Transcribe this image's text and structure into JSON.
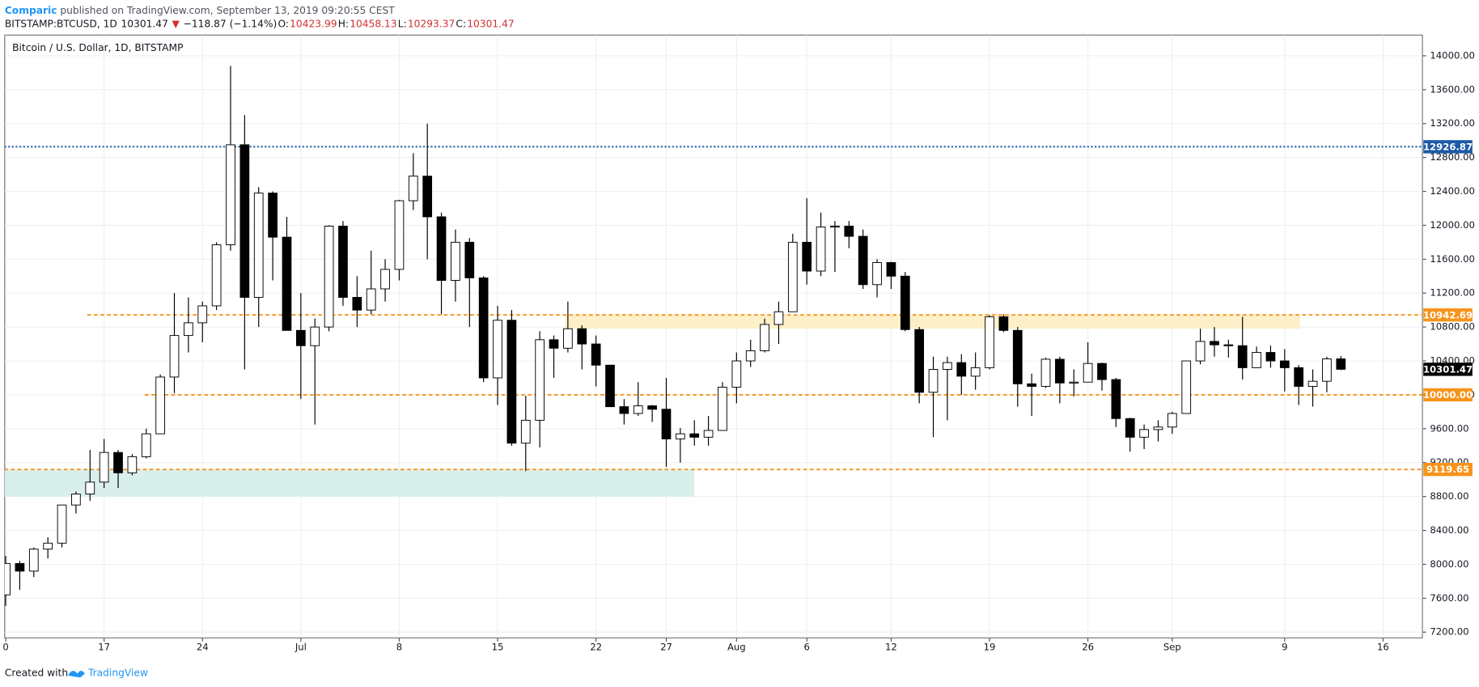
{
  "header": {
    "author": "Comparic",
    "published": "published on TradingView.com, September 13, 2019 09:20:55 CEST",
    "quote": [
      {
        "text": "BITSTAMP:BTCUSD, 1D",
        "color": "#131722"
      },
      {
        "text": "10301.47",
        "color": "#131722"
      },
      {
        "text": "▼",
        "color": "#d32f2f"
      },
      {
        "text": "−118.87 (−1.14%)",
        "color": "#131722"
      },
      {
        "text": "O:",
        "color": "#131722"
      },
      {
        "text": "10423.99",
        "color": "#d32f2f"
      },
      {
        "text": "H:",
        "color": "#131722"
      },
      {
        "text": "10458.13",
        "color": "#d32f2f"
      },
      {
        "text": "L:",
        "color": "#131722"
      },
      {
        "text": "10293.37",
        "color": "#d32f2f"
      },
      {
        "text": "C:",
        "color": "#131722"
      },
      {
        "text": "10301.47",
        "color": "#d32f2f"
      }
    ]
  },
  "footer": {
    "text": "Created with",
    "brand": "TradingView"
  },
  "chart_data": {
    "type": "candlestick",
    "title": "Bitcoin / U.S. Dollar, 1D, BITSTAMP",
    "up_color": "#ffffff",
    "down_color": "#000000",
    "outline_color": "#000000",
    "grid": true,
    "open": [
      7640,
      8010,
      7920,
      8180,
      8250,
      8700,
      8830,
      8970,
      9320,
      9080,
      9270,
      9540,
      10210,
      10700,
      10850,
      11050,
      11770,
      12950,
      11150,
      12380,
      11860,
      10760,
      10580,
      10800,
      11990,
      11150,
      11000,
      11250,
      11480,
      12290,
      12580,
      12100,
      11350,
      11800,
      11380,
      10200,
      10880,
      9430,
      9700,
      10650,
      10550,
      10780,
      10600,
      10350,
      9860,
      9780,
      9870,
      9830,
      9480,
      9540,
      9500,
      9580,
      10090,
      10400,
      10520,
      10830,
      10980,
      11800,
      11460,
      11980,
      11990,
      11870,
      11300,
      11560,
      11400,
      10770,
      10030,
      10300,
      10380,
      10220,
      10320,
      10920,
      10760,
      10130,
      10100,
      10420,
      10140,
      10150,
      10370,
      10180,
      9720,
      9500,
      9590,
      9620,
      9780,
      10400,
      10630,
      10590,
      10580,
      10320,
      10500,
      10400,
      10320,
      10100,
      10160,
      10423.99
    ],
    "high": [
      8100,
      8040,
      8200,
      8320,
      8700,
      8860,
      9350,
      9480,
      9350,
      9300,
      9600,
      10240,
      11200,
      11150,
      11100,
      11800,
      13880,
      13300,
      12450,
      12400,
      12100,
      11200,
      10900,
      12000,
      12050,
      11400,
      11700,
      11600,
      12300,
      12850,
      13200,
      12150,
      11950,
      11850,
      11400,
      11050,
      11000,
      9990,
      10750,
      10700,
      11100,
      10820,
      10700,
      10350,
      9950,
      10150,
      9880,
      10200,
      9610,
      9700,
      9750,
      10150,
      10500,
      10650,
      10900,
      11100,
      11900,
      12320,
      12150,
      12050,
      12050,
      11950,
      11600,
      11570,
      11450,
      10800,
      10450,
      10450,
      10480,
      10500,
      10940,
      10950,
      10800,
      10250,
      10440,
      10450,
      10300,
      10620,
      10380,
      10200,
      9730,
      9650,
      9700,
      9800,
      10400,
      10780,
      10800,
      10650,
      10920,
      10570,
      10580,
      10540,
      10350,
      10300,
      10450,
      10458.13
    ],
    "low": [
      7510,
      7700,
      7850,
      8070,
      8200,
      8600,
      8750,
      8900,
      8900,
      9050,
      9250,
      9540,
      10020,
      10500,
      10620,
      11000,
      11700,
      10300,
      10800,
      11350,
      10800,
      9950,
      9650,
      10750,
      11050,
      10800,
      10950,
      11100,
      11350,
      12180,
      11600,
      10950,
      11100,
      10800,
      10150,
      9880,
      9400,
      9100,
      9380,
      10200,
      10500,
      10300,
      10100,
      9900,
      9650,
      9750,
      9680,
      9150,
      9200,
      9400,
      9400,
      9580,
      9900,
      10330,
      10500,
      10600,
      10980,
      11300,
      11400,
      11450,
      11730,
      11250,
      11150,
      11250,
      10750,
      9900,
      9500,
      9700,
      10000,
      10060,
      10300,
      10740,
      9860,
      9750,
      10080,
      9900,
      9980,
      10150,
      10050,
      9620,
      9330,
      9360,
      9450,
      9540,
      9780,
      10360,
      10450,
      10440,
      10180,
      10320,
      10320,
      10040,
      9880,
      9860,
      10030,
      10293.37
    ],
    "close": [
      8010,
      7920,
      8180,
      8250,
      8700,
      8830,
      8970,
      9320,
      9080,
      9270,
      9540,
      10210,
      10700,
      10850,
      11050,
      11770,
      12950,
      11150,
      12380,
      11860,
      10760,
      10580,
      10800,
      11990,
      11150,
      11000,
      11250,
      11480,
      12290,
      12580,
      12100,
      11350,
      11800,
      11380,
      10200,
      10880,
      9430,
      9700,
      10650,
      10550,
      10780,
      10600,
      10350,
      9860,
      9780,
      9870,
      9830,
      9480,
      9540,
      9500,
      9580,
      10090,
      10400,
      10520,
      10830,
      10980,
      11800,
      11460,
      11980,
      11990,
      11870,
      11300,
      11560,
      11400,
      10770,
      10030,
      10300,
      10380,
      10220,
      10320,
      10920,
      10760,
      10130,
      10100,
      10420,
      10140,
      10150,
      10370,
      10180,
      9720,
      9500,
      9590,
      9620,
      9780,
      10400,
      10630,
      10590,
      10580,
      10320,
      10500,
      10400,
      10320,
      10100,
      10160,
      10423.99,
      10301.47
    ],
    "xlim": [
      -0.07,
      100.8
    ],
    "xticks": [
      {
        "value": 0,
        "label": "0"
      },
      {
        "value": 7,
        "label": "17"
      },
      {
        "value": 14,
        "label": "24"
      },
      {
        "value": 21,
        "label": "Jul"
      },
      {
        "value": 28,
        "label": "8"
      },
      {
        "value": 35,
        "label": "15"
      },
      {
        "value": 42,
        "label": "22"
      },
      {
        "value": 47,
        "label": "27"
      },
      {
        "value": 52,
        "label": "Aug"
      },
      {
        "value": 57,
        "label": "6"
      },
      {
        "value": 63,
        "label": "12"
      },
      {
        "value": 70,
        "label": "19"
      },
      {
        "value": 77,
        "label": "26"
      },
      {
        "value": 83,
        "label": "Sep"
      },
      {
        "value": 91,
        "label": "9"
      },
      {
        "value": 98,
        "label": "16"
      }
    ],
    "ylim": [
      7200,
      14000
    ],
    "yticks": [
      {
        "value": 7200,
        "label": "7200.00"
      },
      {
        "value": 7600,
        "label": "7600.00"
      },
      {
        "value": 8000,
        "label": "8000.00"
      },
      {
        "value": 8400,
        "label": "8400.00"
      },
      {
        "value": 8800,
        "label": "8800.00"
      },
      {
        "value": 9200,
        "label": "9200.00"
      },
      {
        "value": 9600,
        "label": "9600.00"
      },
      {
        "value": 10000,
        "label": "10000.00"
      },
      {
        "value": 10400,
        "label": "10400.00"
      },
      {
        "value": 10800,
        "label": "10800.00"
      },
      {
        "value": 11200,
        "label": "11200.00"
      },
      {
        "value": 11600,
        "label": "11600.00"
      },
      {
        "value": 12000,
        "label": "12000.00"
      },
      {
        "value": 12400,
        "label": "12400.00"
      },
      {
        "value": 12800,
        "label": "12800.00"
      },
      {
        "value": 13200,
        "label": "13200.00"
      },
      {
        "value": 13600,
        "label": "13600.00"
      },
      {
        "value": 14000,
        "label": "14000.00"
      }
    ],
    "zones": [
      {
        "low": 10780,
        "high": 10942.69,
        "start": 39.8,
        "end": 92.1,
        "color": "#fdf0c8"
      },
      {
        "low": 8800,
        "high": 9119.65,
        "start": -0.1,
        "end": 49,
        "color": "#d9efec"
      }
    ],
    "levels": [
      {
        "value": 12926.87,
        "label": "12926.87",
        "color": "#1c5aa6",
        "start": -0.1,
        "style": "dotted"
      },
      {
        "value": 10942.69,
        "label": "10942.69",
        "color": "#f7931a",
        "start": 5.8,
        "style": "dashed"
      },
      {
        "value": 10000,
        "label": "10000.00",
        "color": "#f7931a",
        "start": 9.9,
        "style": "dashed"
      },
      {
        "value": 9119.65,
        "label": "9119.65",
        "color": "#f7931a",
        "start": -0.1,
        "style": "dashed"
      }
    ],
    "last_price": {
      "value": 10301.47,
      "label": "10301.47",
      "color": "#000000"
    }
  }
}
